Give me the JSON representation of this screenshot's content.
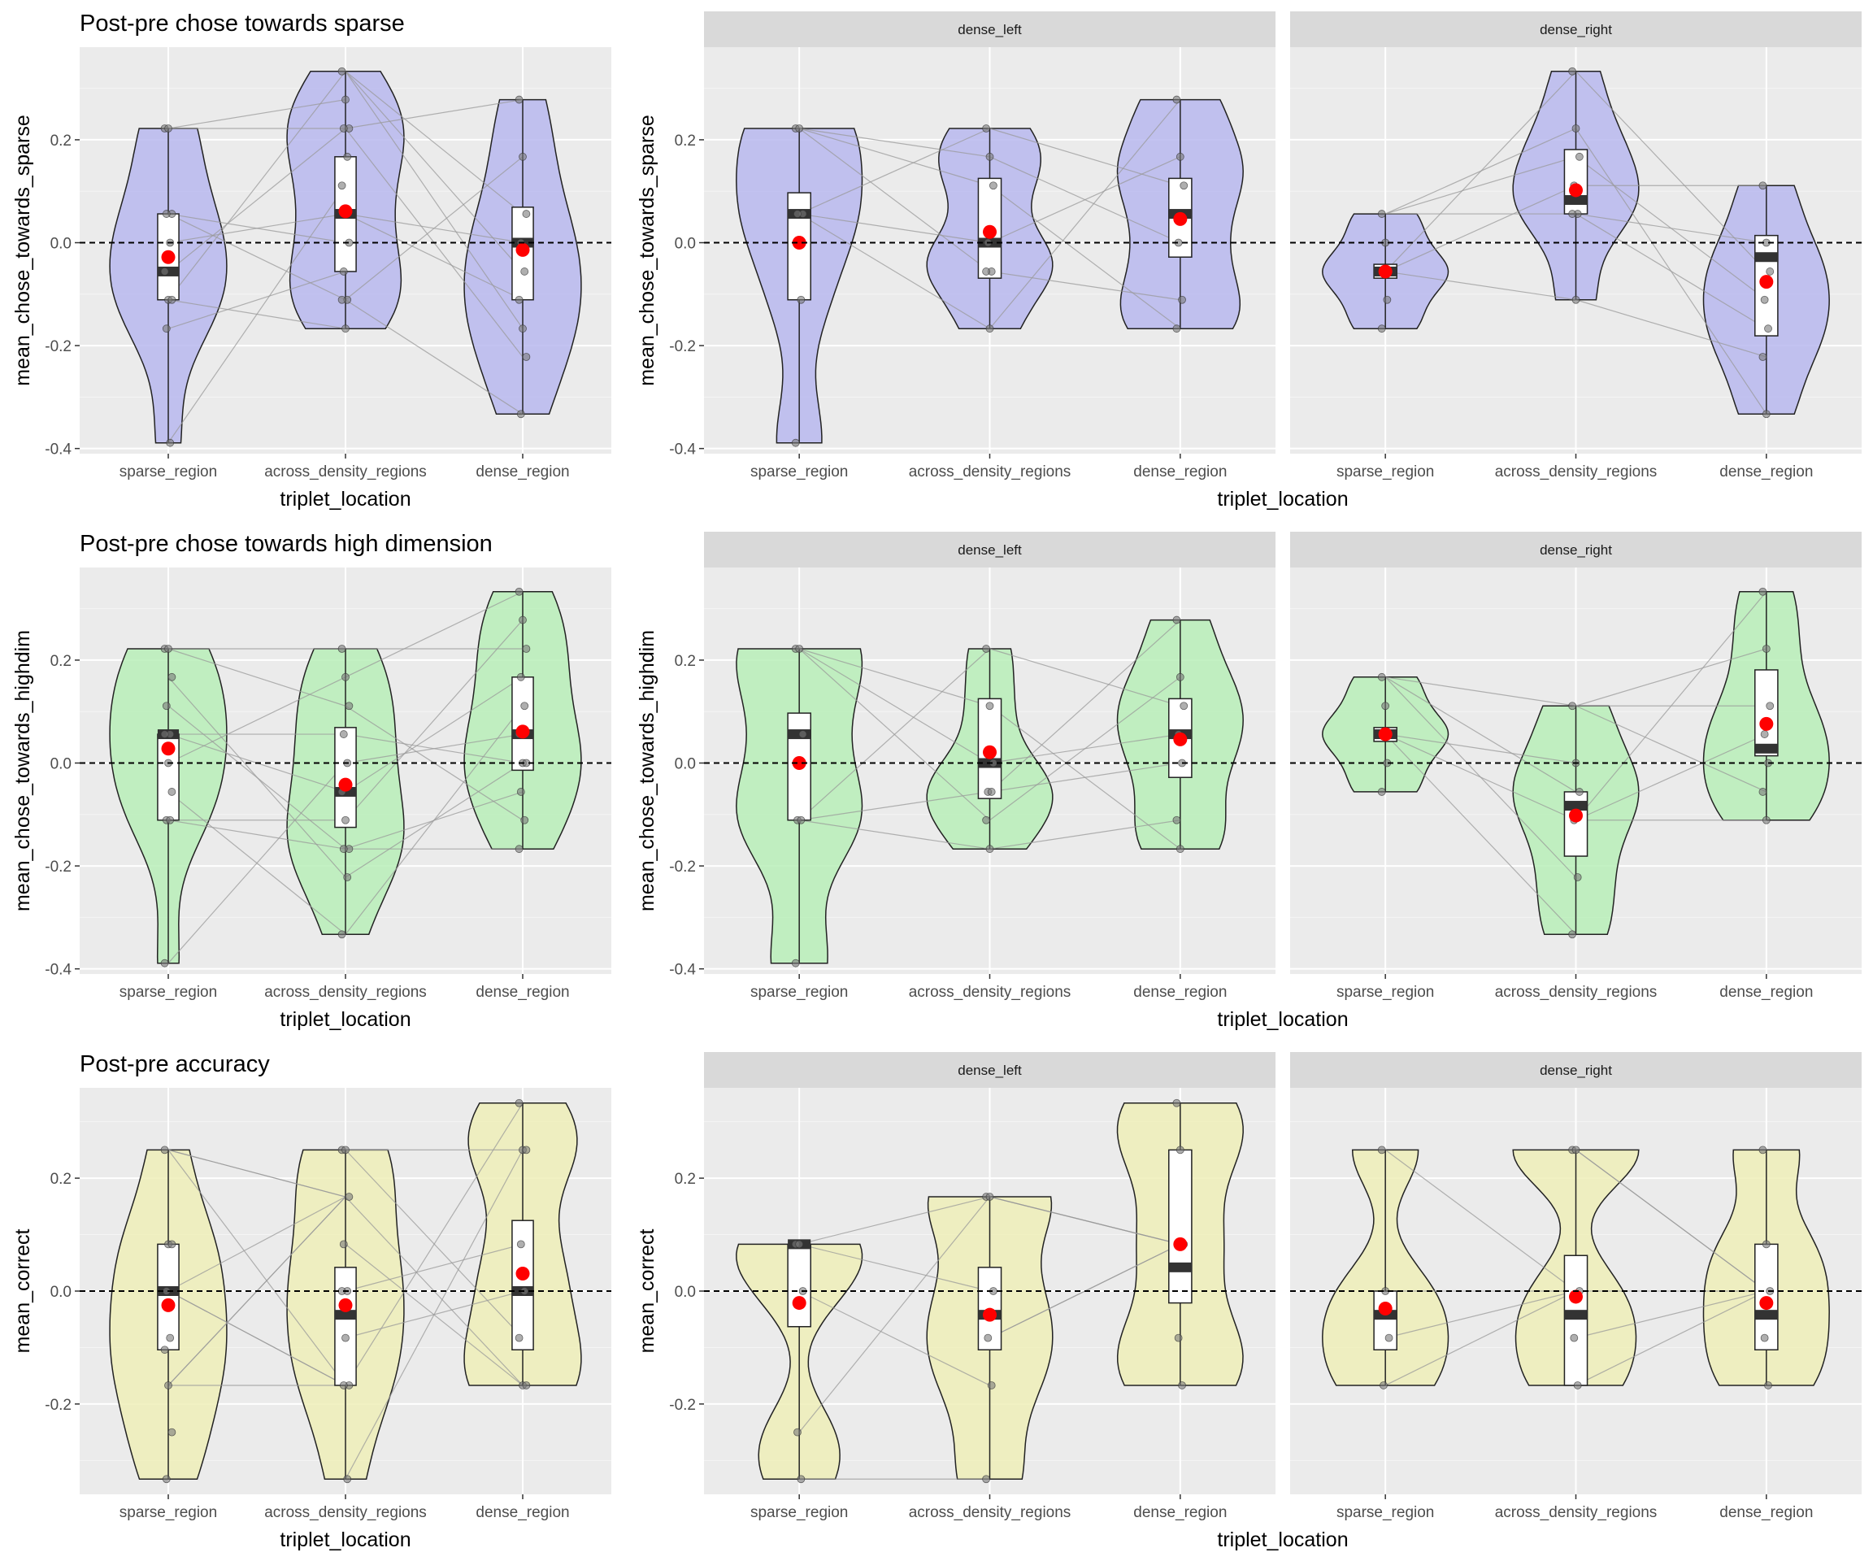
{
  "chart_data": [
    {
      "type": "violin",
      "title": "Post-pre chose towards sparse",
      "xlabel": "triplet_location",
      "ylabel": "mean_chose_towards_sparse",
      "categories": [
        "sparse_region",
        "across_density_regions",
        "dense_region"
      ],
      "ylim": [
        -0.41,
        0.38
      ],
      "yticks": [
        "-0.4",
        "-0.2",
        "0.0",
        "0.2"
      ],
      "yticks_values": [
        -0.4,
        -0.2,
        0.0,
        0.2
      ],
      "reference_line": 0.0,
      "fill_color": "#b8b8ef",
      "series": [
        {
          "category": "sparse_region",
          "min": -0.389,
          "q1": -0.111,
          "median": -0.056,
          "q3": 0.056,
          "max": 0.222,
          "mean": -0.028,
          "points": [
            0.222,
            0.222,
            0.056,
            0.056,
            0.0,
            -0.056,
            -0.111,
            -0.111,
            -0.167,
            -0.389
          ]
        },
        {
          "category": "across_density_regions",
          "min": -0.167,
          "q1": -0.056,
          "median": 0.056,
          "q3": 0.167,
          "max": 0.333,
          "mean": 0.061,
          "points": [
            0.333,
            0.278,
            0.222,
            0.222,
            0.167,
            0.111,
            0.056,
            0.0,
            -0.056,
            -0.111,
            -0.111,
            -0.167
          ]
        },
        {
          "category": "dense_region",
          "min": -0.333,
          "q1": -0.111,
          "median": 0.0,
          "q3": 0.069,
          "max": 0.278,
          "mean": -0.014,
          "points": [
            0.278,
            0.167,
            0.056,
            0.0,
            -0.056,
            -0.111,
            -0.167,
            -0.222,
            -0.333
          ]
        }
      ]
    },
    {
      "type": "violin",
      "facets": [
        "dense_left",
        "dense_right"
      ],
      "xlabel": "triplet_location",
      "ylabel": "mean_chose_towards_sparse",
      "categories": [
        "sparse_region",
        "across_density_regions",
        "dense_region"
      ],
      "ylim": [
        -0.41,
        0.38
      ],
      "yticks": [
        "-0.4",
        "-0.2",
        "0.0",
        "0.2"
      ],
      "yticks_values": [
        -0.4,
        -0.2,
        0.0,
        0.2
      ],
      "reference_line": 0.0,
      "fill_color": "#b8b8ef",
      "series": [
        {
          "facet": "dense_left",
          "category": "sparse_region",
          "min": -0.389,
          "q1": -0.111,
          "median": 0.056,
          "q3": 0.097,
          "max": 0.222,
          "mean": 0.0,
          "points": [
            0.222,
            0.222,
            0.056,
            0.056,
            -0.111,
            -0.389
          ]
        },
        {
          "facet": "dense_left",
          "category": "across_density_regions",
          "min": -0.167,
          "q1": -0.069,
          "median": 0.0,
          "q3": 0.125,
          "max": 0.222,
          "mean": 0.021,
          "points": [
            0.222,
            0.167,
            0.111,
            0.0,
            -0.056,
            -0.056,
            -0.167
          ]
        },
        {
          "facet": "dense_left",
          "category": "dense_region",
          "min": -0.167,
          "q1": -0.028,
          "median": 0.056,
          "q3": 0.125,
          "max": 0.278,
          "mean": 0.046,
          "points": [
            0.278,
            0.167,
            0.111,
            0.0,
            -0.111,
            -0.167
          ]
        },
        {
          "facet": "dense_right",
          "category": "sparse_region",
          "min": -0.167,
          "q1": -0.069,
          "median": -0.056,
          "q3": -0.042,
          "max": 0.056,
          "mean": -0.056,
          "points": [
            0.056,
            0.0,
            -0.056,
            -0.056,
            -0.111,
            -0.167
          ]
        },
        {
          "facet": "dense_right",
          "category": "across_density_regions",
          "min": -0.111,
          "q1": 0.056,
          "median": 0.083,
          "q3": 0.181,
          "max": 0.333,
          "mean": 0.102,
          "points": [
            0.333,
            0.222,
            0.167,
            0.111,
            0.056,
            0.056,
            -0.111
          ]
        },
        {
          "facet": "dense_right",
          "category": "dense_region",
          "min": -0.333,
          "q1": -0.181,
          "median": -0.028,
          "q3": 0.014,
          "max": 0.111,
          "mean": -0.076,
          "points": [
            0.111,
            0.0,
            -0.056,
            -0.111,
            -0.167,
            -0.222,
            -0.333
          ]
        }
      ]
    },
    {
      "type": "violin",
      "title": "Post-pre chose towards high dimension",
      "xlabel": "triplet_location",
      "ylabel": "mean_chose_towards_highdim",
      "categories": [
        "sparse_region",
        "across_density_regions",
        "dense_region"
      ],
      "ylim": [
        -0.41,
        0.38
      ],
      "yticks": [
        "-0.4",
        "-0.2",
        "0.0",
        "0.2"
      ],
      "yticks_values": [
        -0.4,
        -0.2,
        0.0,
        0.2
      ],
      "reference_line": 0.0,
      "fill_color": "#b8eeb8",
      "series": [
        {
          "category": "sparse_region",
          "min": -0.389,
          "q1": -0.111,
          "median": 0.056,
          "q3": 0.056,
          "max": 0.222,
          "mean": 0.028,
          "points": [
            0.222,
            0.222,
            0.167,
            0.111,
            0.056,
            0.056,
            0.0,
            -0.056,
            -0.111,
            -0.111,
            -0.389
          ]
        },
        {
          "category": "across_density_regions",
          "min": -0.333,
          "q1": -0.125,
          "median": -0.056,
          "q3": 0.069,
          "max": 0.222,
          "mean": -0.042,
          "points": [
            0.222,
            0.167,
            0.111,
            0.056,
            0.0,
            -0.056,
            -0.111,
            -0.167,
            -0.167,
            -0.222,
            -0.333
          ]
        },
        {
          "category": "dense_region",
          "min": -0.167,
          "q1": -0.014,
          "median": 0.056,
          "q3": 0.167,
          "max": 0.333,
          "mean": 0.061,
          "points": [
            0.333,
            0.278,
            0.222,
            0.167,
            0.111,
            0.056,
            0.0,
            0.0,
            -0.056,
            -0.111,
            -0.167
          ]
        }
      ]
    },
    {
      "type": "violin",
      "facets": [
        "dense_left",
        "dense_right"
      ],
      "xlabel": "triplet_location",
      "ylabel": "mean_chose_towards_highdim",
      "categories": [
        "sparse_region",
        "across_density_regions",
        "dense_region"
      ],
      "ylim": [
        -0.41,
        0.38
      ],
      "yticks": [
        "-0.4",
        "-0.2",
        "0.0",
        "0.2"
      ],
      "yticks_values": [
        -0.4,
        -0.2,
        0.0,
        0.2
      ],
      "reference_line": 0.0,
      "fill_color": "#b8eeb8",
      "series": [
        {
          "facet": "dense_left",
          "category": "sparse_region",
          "min": -0.389,
          "q1": -0.111,
          "median": 0.056,
          "q3": 0.097,
          "max": 0.222,
          "mean": 0.0,
          "points": [
            0.222,
            0.222,
            0.056,
            -0.111,
            -0.111,
            -0.389
          ]
        },
        {
          "facet": "dense_left",
          "category": "across_density_regions",
          "min": -0.167,
          "q1": -0.069,
          "median": 0.0,
          "q3": 0.125,
          "max": 0.222,
          "mean": 0.021,
          "points": [
            0.222,
            0.111,
            0.0,
            -0.056,
            -0.056,
            -0.111,
            -0.167
          ]
        },
        {
          "facet": "dense_left",
          "category": "dense_region",
          "min": -0.167,
          "q1": -0.028,
          "median": 0.056,
          "q3": 0.125,
          "max": 0.278,
          "mean": 0.046,
          "points": [
            0.278,
            0.167,
            0.111,
            0.056,
            0.0,
            -0.111,
            -0.167
          ]
        },
        {
          "facet": "dense_right",
          "category": "sparse_region",
          "min": -0.056,
          "q1": 0.042,
          "median": 0.056,
          "q3": 0.069,
          "max": 0.167,
          "mean": 0.056,
          "points": [
            0.167,
            0.111,
            0.056,
            0.056,
            0.0,
            -0.056
          ]
        },
        {
          "facet": "dense_right",
          "category": "across_density_regions",
          "min": -0.333,
          "q1": -0.181,
          "median": -0.083,
          "q3": -0.056,
          "max": 0.111,
          "mean": -0.102,
          "points": [
            0.111,
            0.0,
            -0.056,
            -0.111,
            -0.222,
            -0.333
          ]
        },
        {
          "facet": "dense_right",
          "category": "dense_region",
          "min": -0.111,
          "q1": 0.014,
          "median": 0.028,
          "q3": 0.181,
          "max": 0.333,
          "mean": 0.076,
          "points": [
            0.333,
            0.222,
            0.111,
            0.056,
            0.0,
            -0.056,
            -0.111
          ]
        }
      ]
    },
    {
      "type": "violin",
      "title": "Post-pre accuracy",
      "xlabel": "triplet_location",
      "ylabel": "mean_correct",
      "categories": [
        "sparse_region",
        "across_density_regions",
        "dense_region"
      ],
      "ylim": [
        -0.36,
        0.36
      ],
      "yticks": [
        "-0.2",
        "0.0",
        "0.2"
      ],
      "yticks_values": [
        -0.2,
        0.0,
        0.2
      ],
      "reference_line": 0.0,
      "fill_color": "#efefb8",
      "series": [
        {
          "category": "sparse_region",
          "min": -0.333,
          "q1": -0.104,
          "median": 0.0,
          "q3": 0.083,
          "max": 0.25,
          "mean": -0.025,
          "points": [
            0.25,
            0.083,
            0.083,
            0.0,
            -0.083,
            -0.104,
            -0.167,
            -0.25,
            -0.333
          ]
        },
        {
          "category": "across_density_regions",
          "min": -0.333,
          "q1": -0.167,
          "median": -0.042,
          "q3": 0.042,
          "max": 0.25,
          "mean": -0.025,
          "points": [
            0.25,
            0.25,
            0.167,
            0.083,
            0.0,
            0.0,
            -0.083,
            -0.167,
            -0.167,
            -0.333
          ]
        },
        {
          "category": "dense_region",
          "min": -0.167,
          "q1": -0.104,
          "median": 0.0,
          "q3": 0.125,
          "max": 0.333,
          "mean": 0.031,
          "points": [
            0.333,
            0.25,
            0.25,
            0.083,
            0.0,
            -0.083,
            -0.167,
            -0.167
          ]
        }
      ]
    },
    {
      "type": "violin",
      "facets": [
        "dense_left",
        "dense_right"
      ],
      "xlabel": "triplet_location",
      "ylabel": "mean_correct",
      "categories": [
        "sparse_region",
        "across_density_regions",
        "dense_region"
      ],
      "ylim": [
        -0.36,
        0.36
      ],
      "yticks": [
        "-0.2",
        "0.0",
        "0.2"
      ],
      "yticks_values": [
        -0.2,
        0.0,
        0.2
      ],
      "reference_line": 0.0,
      "fill_color": "#efefb8",
      "series": [
        {
          "facet": "dense_left",
          "category": "sparse_region",
          "min": -0.333,
          "q1": -0.063,
          "median": 0.083,
          "q3": 0.083,
          "max": 0.083,
          "mean": -0.021,
          "points": [
            0.083,
            0.083,
            0.0,
            -0.25,
            -0.333
          ]
        },
        {
          "facet": "dense_left",
          "category": "across_density_regions",
          "min": -0.333,
          "q1": -0.104,
          "median": -0.042,
          "q3": 0.042,
          "max": 0.167,
          "mean": -0.042,
          "points": [
            0.167,
            0.167,
            0.0,
            -0.083,
            -0.167,
            -0.333
          ]
        },
        {
          "facet": "dense_left",
          "category": "dense_region",
          "min": -0.167,
          "q1": -0.021,
          "median": 0.042,
          "q3": 0.25,
          "max": 0.333,
          "mean": 0.083,
          "points": [
            0.333,
            0.25,
            0.083,
            -0.083,
            -0.167
          ]
        },
        {
          "facet": "dense_right",
          "category": "sparse_region",
          "min": -0.167,
          "q1": -0.104,
          "median": -0.042,
          "q3": 0.0,
          "max": 0.25,
          "mean": -0.031,
          "points": [
            0.25,
            0.0,
            -0.083,
            -0.167
          ]
        },
        {
          "facet": "dense_right",
          "category": "across_density_regions",
          "min": -0.167,
          "q1": -0.167,
          "median": -0.042,
          "q3": 0.063,
          "max": 0.25,
          "mean": -0.01,
          "points": [
            0.25,
            0.25,
            0.0,
            -0.083,
            -0.167
          ]
        },
        {
          "facet": "dense_right",
          "category": "dense_region",
          "min": -0.167,
          "q1": -0.104,
          "median": -0.042,
          "q3": 0.083,
          "max": 0.25,
          "mean": -0.021,
          "points": [
            0.25,
            0.083,
            0.0,
            -0.083,
            -0.167
          ]
        }
      ]
    }
  ]
}
